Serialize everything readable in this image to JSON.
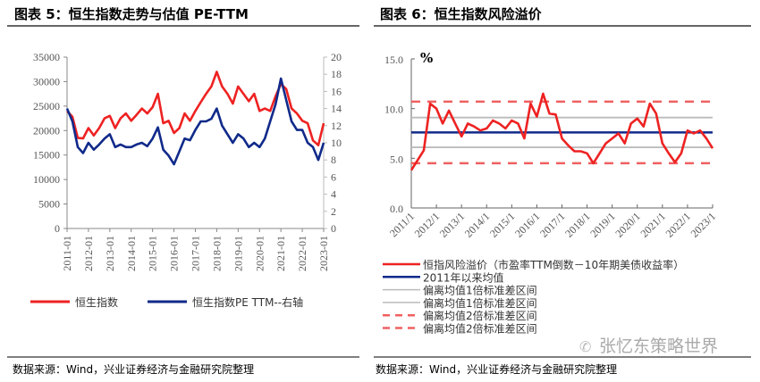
{
  "left": {
    "title": "图表 5：恒生指数走势与估值 PE-TTM",
    "source": "数据来源：Wind，兴业证券经济与金融研究院整理"
  },
  "right": {
    "title": "图表 6：恒生指数风险溢价",
    "source": "数据来源：Wind，兴业证券经济与金融研究院整理",
    "watermark": "张忆东策略世界"
  },
  "chart_data": [
    {
      "type": "line",
      "title": "恒生指数走势与估值 PE-TTM",
      "x_ticks": [
        "2011-01",
        "2012-01",
        "2013-01",
        "2014-01",
        "2015-01",
        "2016-01",
        "2017-01",
        "2018-01",
        "2019-01",
        "2020-01",
        "2021-01",
        "2022-01",
        "2023-01"
      ],
      "y_left": {
        "lim": [
          0,
          35000
        ],
        "ticks": [
          "0",
          "5000",
          "10000",
          "15000",
          "20000",
          "25000",
          "30000",
          "35000"
        ]
      },
      "y_right": {
        "lim": [
          0,
          20
        ],
        "ticks": [
          "0",
          "2",
          "4",
          "6",
          "8",
          "10",
          "12",
          "14",
          "16",
          "18",
          "20"
        ]
      },
      "x_frequency": "quarterly from 2011Q1 to 2023Q1",
      "series": [
        {
          "name": "恒生指数",
          "axis": "left",
          "color": "#ee2222",
          "values": [
            24000,
            22800,
            18500,
            18400,
            20500,
            19000,
            20500,
            22500,
            23000,
            20500,
            22500,
            23500,
            22000,
            23200,
            24500,
            23500,
            24800,
            27500,
            21500,
            22000,
            19500,
            20500,
            23500,
            22000,
            24000,
            25800,
            27500,
            29000,
            32000,
            29000,
            27500,
            25500,
            29000,
            27500,
            26000,
            27500,
            24000,
            24500,
            24000,
            27000,
            29500,
            28500,
            24500,
            23500,
            22000,
            21500,
            18000,
            17000,
            21500
          ]
        },
        {
          "name": "恒生指数PE TTM--右轴",
          "axis": "right",
          "color": "#102a8a",
          "values": [
            14,
            12.5,
            9.5,
            8.8,
            10,
            9.2,
            9.8,
            10.5,
            11,
            9.5,
            9.8,
            9.5,
            9.5,
            9.8,
            10,
            9.6,
            10.5,
            11.8,
            9.2,
            8.5,
            7.5,
            9,
            10.5,
            10.3,
            11.5,
            12.5,
            12.5,
            12.8,
            14,
            12,
            11,
            10,
            11,
            10.5,
            9.5,
            10,
            9.5,
            10.5,
            12.5,
            14.5,
            17.5,
            15,
            12.5,
            11.5,
            11.5,
            10,
            9.5,
            8,
            10
          ]
        }
      ]
    },
    {
      "type": "line",
      "title": "恒生指数风险溢价",
      "ylabel": "%",
      "x_ticks": [
        "2011/1",
        "2012/1",
        "2013/1",
        "2014/1",
        "2015/1",
        "2016/1",
        "2017/1",
        "2018/1",
        "2019/1",
        "2020/1",
        "2021/1",
        "2022/1",
        "2023/1"
      ],
      "y": {
        "lim": [
          0,
          15
        ],
        "ticks": [
          "0.0",
          "5.0",
          "10.0",
          "15.0"
        ]
      },
      "x_frequency": "quarterly from 2011Q1 to 2023Q1",
      "series": [
        {
          "name": "恒指风险溢价（市盈率TTM倒数－10年期美债收益率）",
          "color": "#ee2222",
          "style": "solid",
          "values": [
            3.8,
            4.8,
            5.8,
            10.5,
            10.0,
            8.5,
            9.8,
            8.5,
            7.2,
            8.5,
            8.2,
            7.8,
            8.0,
            8.8,
            8.5,
            8.0,
            8.8,
            8.5,
            7.0,
            10.5,
            9.2,
            11.5,
            9.5,
            9.4,
            7.0,
            6.3,
            5.7,
            5.7,
            5.5,
            4.5,
            5.5,
            6.5,
            7.0,
            7.5,
            6.5,
            8.5,
            9.0,
            8.2,
            10.5,
            9.5,
            6.5,
            5.5,
            4.6,
            5.5,
            7.8,
            7.5,
            7.8,
            7.0,
            6.0
          ]
        },
        {
          "name": "2011年以来均值",
          "color": "#102a8a",
          "style": "solid",
          "level": 7.6
        },
        {
          "name": "偏离均值1倍标准差区间",
          "color": "#bbbbbb",
          "style": "solid",
          "level": 9.1
        },
        {
          "name": "偏离均值1倍标准差区间",
          "color": "#bbbbbb",
          "style": "solid",
          "level": 6.1
        },
        {
          "name": "偏离均值2倍标准差区间",
          "color": "#f06060",
          "style": "dashed",
          "level": 10.7
        },
        {
          "name": "偏离均值2倍标准差区间",
          "color": "#f06060",
          "style": "dashed",
          "level": 4.5
        }
      ]
    }
  ]
}
